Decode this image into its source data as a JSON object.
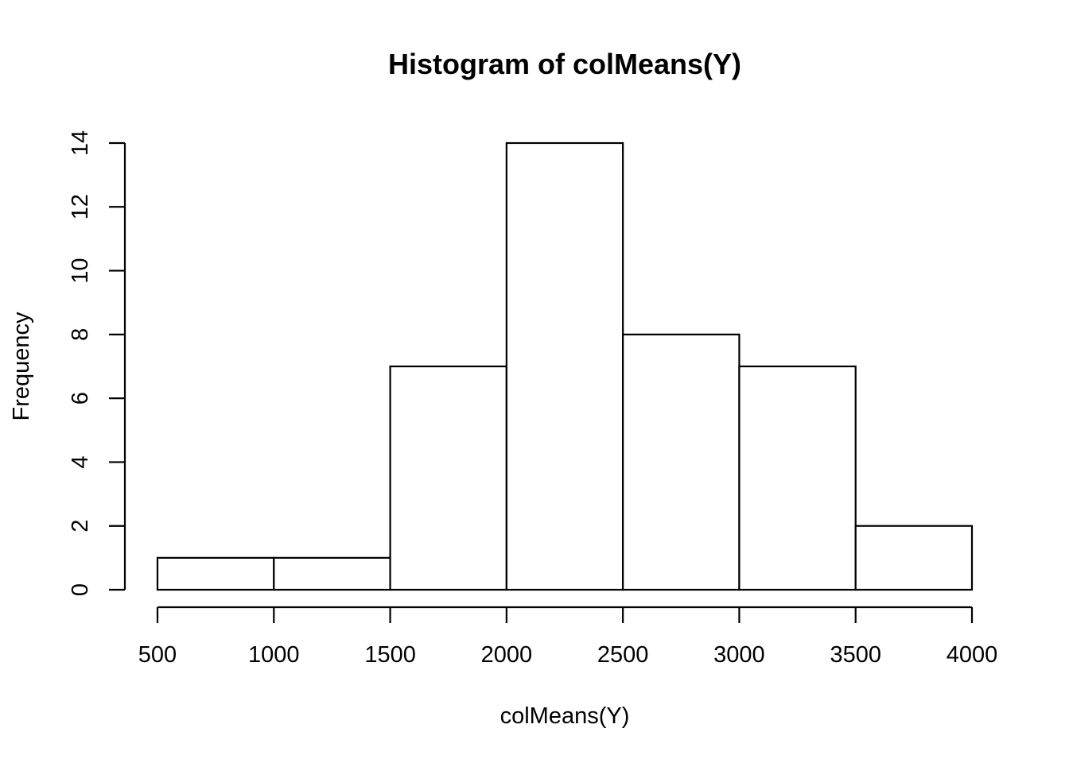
{
  "chart_data": {
    "type": "bar",
    "title": "Histogram of colMeans(Y)",
    "xlabel": "colMeans(Y)",
    "ylabel": "Frequency",
    "bins": [
      {
        "from": 500,
        "to": 1000,
        "count": 1
      },
      {
        "from": 1000,
        "to": 1500,
        "count": 1
      },
      {
        "from": 1500,
        "to": 2000,
        "count": 7
      },
      {
        "from": 2000,
        "to": 2500,
        "count": 14
      },
      {
        "from": 2500,
        "to": 3000,
        "count": 8
      },
      {
        "from": 3000,
        "to": 3500,
        "count": 7
      },
      {
        "from": 3500,
        "to": 4000,
        "count": 2
      }
    ],
    "xlim": [
      500,
      4000
    ],
    "ylim": [
      0,
      14
    ],
    "x_ticks": [
      "500",
      "1000",
      "1500",
      "2000",
      "2500",
      "3000",
      "3500",
      "4000"
    ],
    "y_ticks": [
      "0",
      "2",
      "4",
      "6",
      "8",
      "10",
      "12",
      "14"
    ],
    "grid": false,
    "legend": "none",
    "colors": {
      "bar_fill": "#ffffff",
      "stroke": "#000000"
    }
  }
}
